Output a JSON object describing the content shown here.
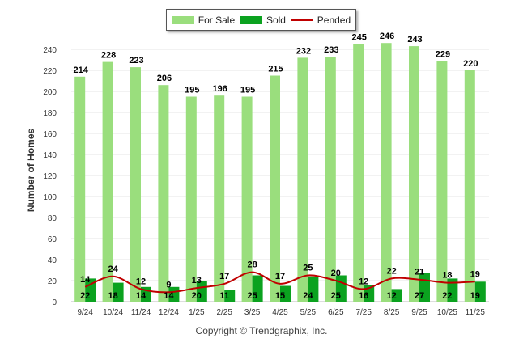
{
  "chart_data": {
    "type": "bar",
    "ylabel": "Number of Homes",
    "ylim": [
      0,
      250
    ],
    "yticks": [
      0,
      20,
      40,
      60,
      80,
      100,
      120,
      140,
      160,
      180,
      200,
      220,
      240
    ],
    "categories": [
      "9/24",
      "10/24",
      "11/24",
      "12/24",
      "1/25",
      "2/25",
      "3/25",
      "4/25",
      "5/25",
      "6/25",
      "7/25",
      "8/25",
      "9/25",
      "10/25",
      "11/25"
    ],
    "series": [
      {
        "name": "For Sale",
        "type": "bar",
        "color": "#9ADE7D",
        "values": [
          214,
          228,
          223,
          206,
          195,
          196,
          195,
          215,
          232,
          233,
          245,
          246,
          243,
          229,
          220
        ]
      },
      {
        "name": "Sold",
        "type": "bar",
        "color": "#0BA21F",
        "values": [
          22,
          18,
          14,
          14,
          20,
          11,
          25,
          15,
          24,
          25,
          16,
          12,
          27,
          22,
          19
        ]
      },
      {
        "name": "Pended",
        "type": "line",
        "color": "#C00000",
        "values": [
          14,
          24,
          12,
          9,
          13,
          17,
          28,
          17,
          25,
          20,
          12,
          22,
          21,
          18,
          19
        ]
      }
    ],
    "legend_position": "top-center",
    "grid": true
  },
  "footer": {
    "copyright": "Copyright © Trendgraphix, Inc."
  }
}
